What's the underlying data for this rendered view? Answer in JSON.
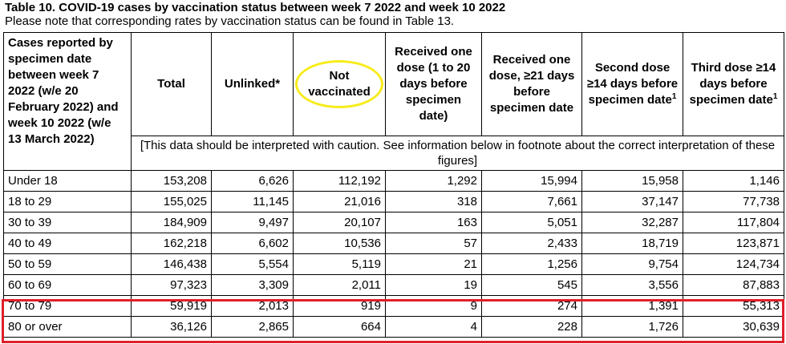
{
  "table_title": "Table 10. COVID-19 cases by vaccination status between week 7 2022 and week 10 2022",
  "table_subtitle": "Please note that corresponding rates by vaccination status can be found in Table 13.",
  "headers": {
    "period": "Cases reported by specimen date between week 7 2022 (w/e 20 February 2022) and week 10 2022 (w/e 13 March 2022)",
    "total": "Total",
    "unlinked": "Unlinked*",
    "not_vaccinated": "Not vaccinated",
    "one_dose_1_20": "Received one dose (1 to 20 days before specimen date)",
    "one_dose_21": "Received one dose, ≥21 days before specimen date",
    "second_dose": "Second dose ≥14 days before specimen date",
    "second_dose_sup": "1",
    "third_dose": "Third dose ≥14 days before specimen date",
    "third_dose_sup": "1"
  },
  "caution_note": "[This data should be interpreted with caution. See information below in footnote about the correct interpretation of these figures]",
  "rows": [
    {
      "age": "Under 18",
      "total": "153,208",
      "unlinked": "6,626",
      "not_vaccinated": "112,192",
      "one_dose_1_20": "1,292",
      "one_dose_21": "15,994",
      "second_dose": "15,958",
      "third_dose": "1,146"
    },
    {
      "age": "18 to 29",
      "total": "155,025",
      "unlinked": "11,145",
      "not_vaccinated": "21,016",
      "one_dose_1_20": "318",
      "one_dose_21": "7,661",
      "second_dose": "37,147",
      "third_dose": "77,738"
    },
    {
      "age": "30 to 39",
      "total": "184,909",
      "unlinked": "9,497",
      "not_vaccinated": "20,107",
      "one_dose_1_20": "163",
      "one_dose_21": "5,051",
      "second_dose": "32,287",
      "third_dose": "117,804"
    },
    {
      "age": "40 to 49",
      "total": "162,218",
      "unlinked": "6,602",
      "not_vaccinated": "10,536",
      "one_dose_1_20": "57",
      "one_dose_21": "2,433",
      "second_dose": "18,719",
      "third_dose": "123,871"
    },
    {
      "age": "50 to 59",
      "total": "146,438",
      "unlinked": "5,554",
      "not_vaccinated": "5,119",
      "one_dose_1_20": "21",
      "one_dose_21": "1,256",
      "second_dose": "9,754",
      "third_dose": "124,734"
    },
    {
      "age": "60 to 69",
      "total": "97,323",
      "unlinked": "3,309",
      "not_vaccinated": "2,011",
      "one_dose_1_20": "19",
      "one_dose_21": "545",
      "second_dose": "3,556",
      "third_dose": "87,883"
    },
    {
      "age": "70 to 79",
      "total": "59,919",
      "unlinked": "2,013",
      "not_vaccinated": "919",
      "one_dose_1_20": "9",
      "one_dose_21": "274",
      "second_dose": "1,391",
      "third_dose": "55,313"
    },
    {
      "age": "80 or over",
      "total": "36,126",
      "unlinked": "2,865",
      "not_vaccinated": "664",
      "one_dose_1_20": "4",
      "one_dose_21": "228",
      "second_dose": "1,726",
      "third_dose": "30,639"
    }
  ],
  "annotations": {
    "ellipse_color": "#f7ec1a",
    "highlight_color": "#e0202a",
    "highlighted_rows": [
      "70 to 79",
      "80 or over"
    ]
  }
}
